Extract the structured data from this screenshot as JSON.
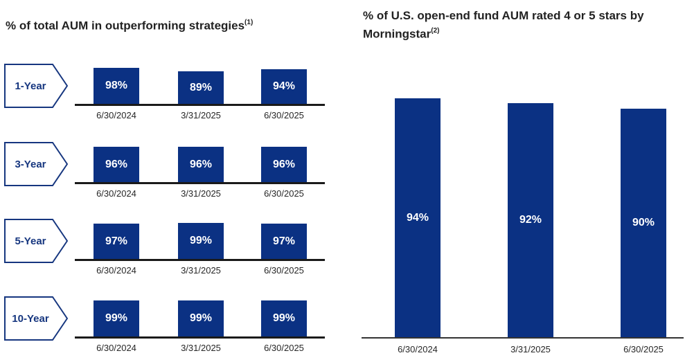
{
  "page": {
    "background": "#ffffff"
  },
  "colors": {
    "bar_fill": "#0B3183",
    "navy": "#16367F",
    "title_text": "#222222",
    "tick_text": "#262626",
    "bar_label_text": "#ffffff",
    "axis_left": "#1A1A1A",
    "axis_right": "#333333"
  },
  "chart_data": [
    {
      "type": "bar",
      "layout": "small-multiples-rows",
      "title": "% of total AUM in outperforming strategies",
      "title_superscript": "(1)",
      "categories": [
        "6/30/2024",
        "3/31/2025",
        "6/30/2025"
      ],
      "series": [
        {
          "name": "1-Year",
          "values": [
            98,
            89,
            94
          ]
        },
        {
          "name": "3-Year",
          "values": [
            96,
            96,
            96
          ]
        },
        {
          "name": "5-Year",
          "values": [
            97,
            99,
            97
          ]
        },
        {
          "name": "10-Year",
          "values": [
            99,
            99,
            99
          ]
        }
      ],
      "value_suffix": "%",
      "ylim": [
        0,
        100
      ],
      "grid": false,
      "legend": "none"
    },
    {
      "type": "bar",
      "title": "% of U.S. open-end fund AUM rated 4 or 5 stars by Morningstar",
      "title_lines": [
        "% of U.S. open-end fund AUM rated 4 or 5 stars by",
        "Morningstar"
      ],
      "title_superscript": "(2)",
      "categories": [
        "6/30/2024",
        "3/31/2025",
        "6/30/2025"
      ],
      "values": [
        94,
        92,
        90
      ],
      "value_suffix": "%",
      "ylim": [
        0,
        100
      ],
      "grid": false,
      "legend": "none"
    }
  ]
}
